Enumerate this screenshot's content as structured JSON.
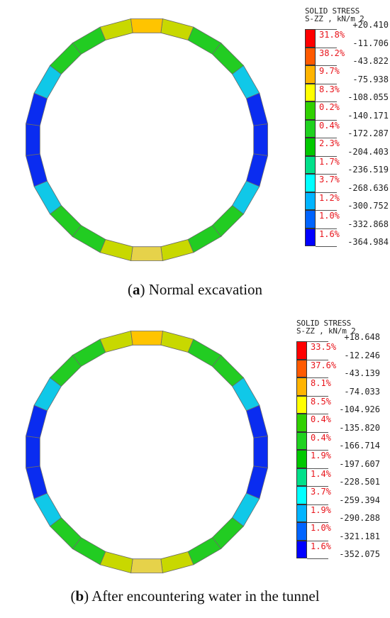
{
  "panels": [
    {
      "id": "a",
      "legend": {
        "title_line1": "SOLID STRESS",
        "title_line2": "S-ZZ , kN/m 2",
        "ticks": [
          "+20.410",
          "-11.706",
          "-43.822",
          "-75.938",
          "-108.055",
          "-140.171",
          "-172.287",
          "-204.403",
          "-236.519",
          "-268.636",
          "-300.752",
          "-332.868",
          "-364.984"
        ],
        "percents": [
          "31.8%",
          "38.2%",
          "9.7%",
          "8.3%",
          "0.2%",
          "0.4%",
          "2.3%",
          "1.7%",
          "3.7%",
          "1.2%",
          "1.0%",
          "1.6%"
        ]
      },
      "caption_letter": "a",
      "caption_text": " Normal excavation"
    },
    {
      "id": "b",
      "legend": {
        "title_line1": "SOLID STRESS",
        "title_line2": "S-ZZ , kN/m 2",
        "ticks": [
          "+18.648",
          "-12.246",
          "-43.139",
          "-74.033",
          "-104.926",
          "-135.820",
          "-166.714",
          "-197.607",
          "-228.501",
          "-259.394",
          "-290.288",
          "-321.181",
          "-352.075"
        ],
        "percents": [
          "33.5%",
          "37.6%",
          "8.1%",
          "8.5%",
          "0.4%",
          "0.4%",
          "1.9%",
          "1.4%",
          "3.7%",
          "1.9%",
          "1.0%",
          "1.6%"
        ]
      },
      "caption_letter": "b",
      "caption_text": " After encountering water in the tunnel"
    }
  ],
  "colors": {
    "bands": [
      "#ff0000",
      "#ff5a00",
      "#ffb400",
      "#ffff00",
      "#30d000",
      "#1fd21f",
      "#00c800",
      "#00e08a",
      "#00ffff",
      "#00b4ff",
      "#0064ff",
      "#0000ff"
    ],
    "ring_top": "#ffc400",
    "ring_bottom": "#e6d24a",
    "ring_green": "#22cc22",
    "ring_side": "#0a2cf0"
  }
}
